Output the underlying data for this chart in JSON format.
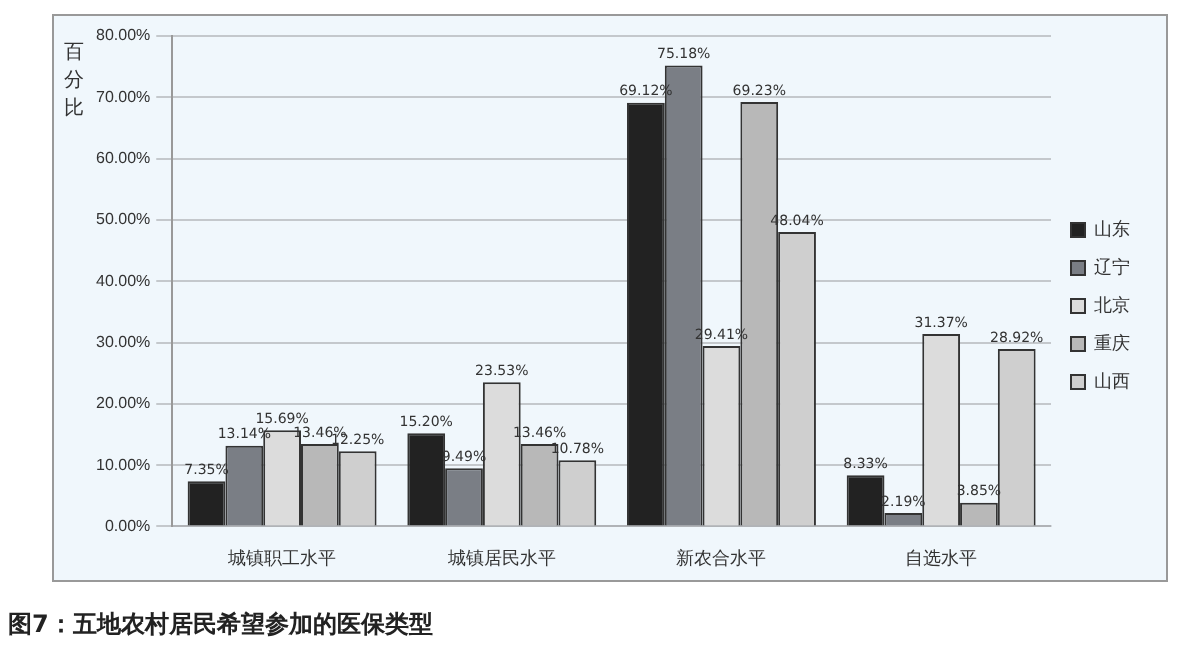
{
  "chart_data": {
    "type": "bar",
    "title": "图7：五地农村居民希望参加的医保类型",
    "ylabel": "百分比",
    "categories": [
      "城镇职工水平",
      "城镇居民水平",
      "新农合水平",
      "自选水平"
    ],
    "series": [
      {
        "name": "山东",
        "color": "#222222",
        "values": [
          7.35,
          15.2,
          69.12,
          8.33
        ],
        "value_labels": [
          "7.35%",
          "15.20%",
          "69.12%",
          "8.33%"
        ]
      },
      {
        "name": "辽宁",
        "color": "#7a7e85",
        "values": [
          13.14,
          9.49,
          75.18,
          2.19
        ],
        "value_labels": [
          "13.14%",
          "9.49%",
          "75.18%",
          "2.19%"
        ]
      },
      {
        "name": "北京",
        "color": "#dcdcdc",
        "values": [
          15.69,
          23.53,
          29.41,
          31.37
        ],
        "value_labels": [
          "15.69%",
          "23.53%",
          "29.41%",
          "31.37%"
        ]
      },
      {
        "name": "重庆",
        "color": "#b8b8b8",
        "values": [
          13.46,
          13.46,
          69.23,
          3.85
        ],
        "value_labels": [
          "13.46%",
          "13.46%",
          "69.23%",
          "3.85%"
        ]
      },
      {
        "name": "山西",
        "color": "#cfcfcf",
        "values": [
          12.25,
          10.78,
          48.04,
          28.92
        ],
        "value_labels": [
          "12.25%",
          "10.78%",
          "48.04%",
          "28.92%"
        ]
      }
    ],
    "ylim": [
      0,
      80
    ],
    "yticks": [
      {
        "value": 0,
        "label": "0.00%"
      },
      {
        "value": 10,
        "label": "10.00%"
      },
      {
        "value": 20,
        "label": "20.00%"
      },
      {
        "value": 30,
        "label": "30.00%"
      },
      {
        "value": 40,
        "label": "40.00%"
      },
      {
        "value": 50,
        "label": "50.00%"
      },
      {
        "value": 60,
        "label": "60.00%"
      },
      {
        "value": 70,
        "label": "70.00%"
      },
      {
        "value": 80,
        "label": "80.00%"
      }
    ],
    "grid": "y",
    "legend": "right"
  }
}
